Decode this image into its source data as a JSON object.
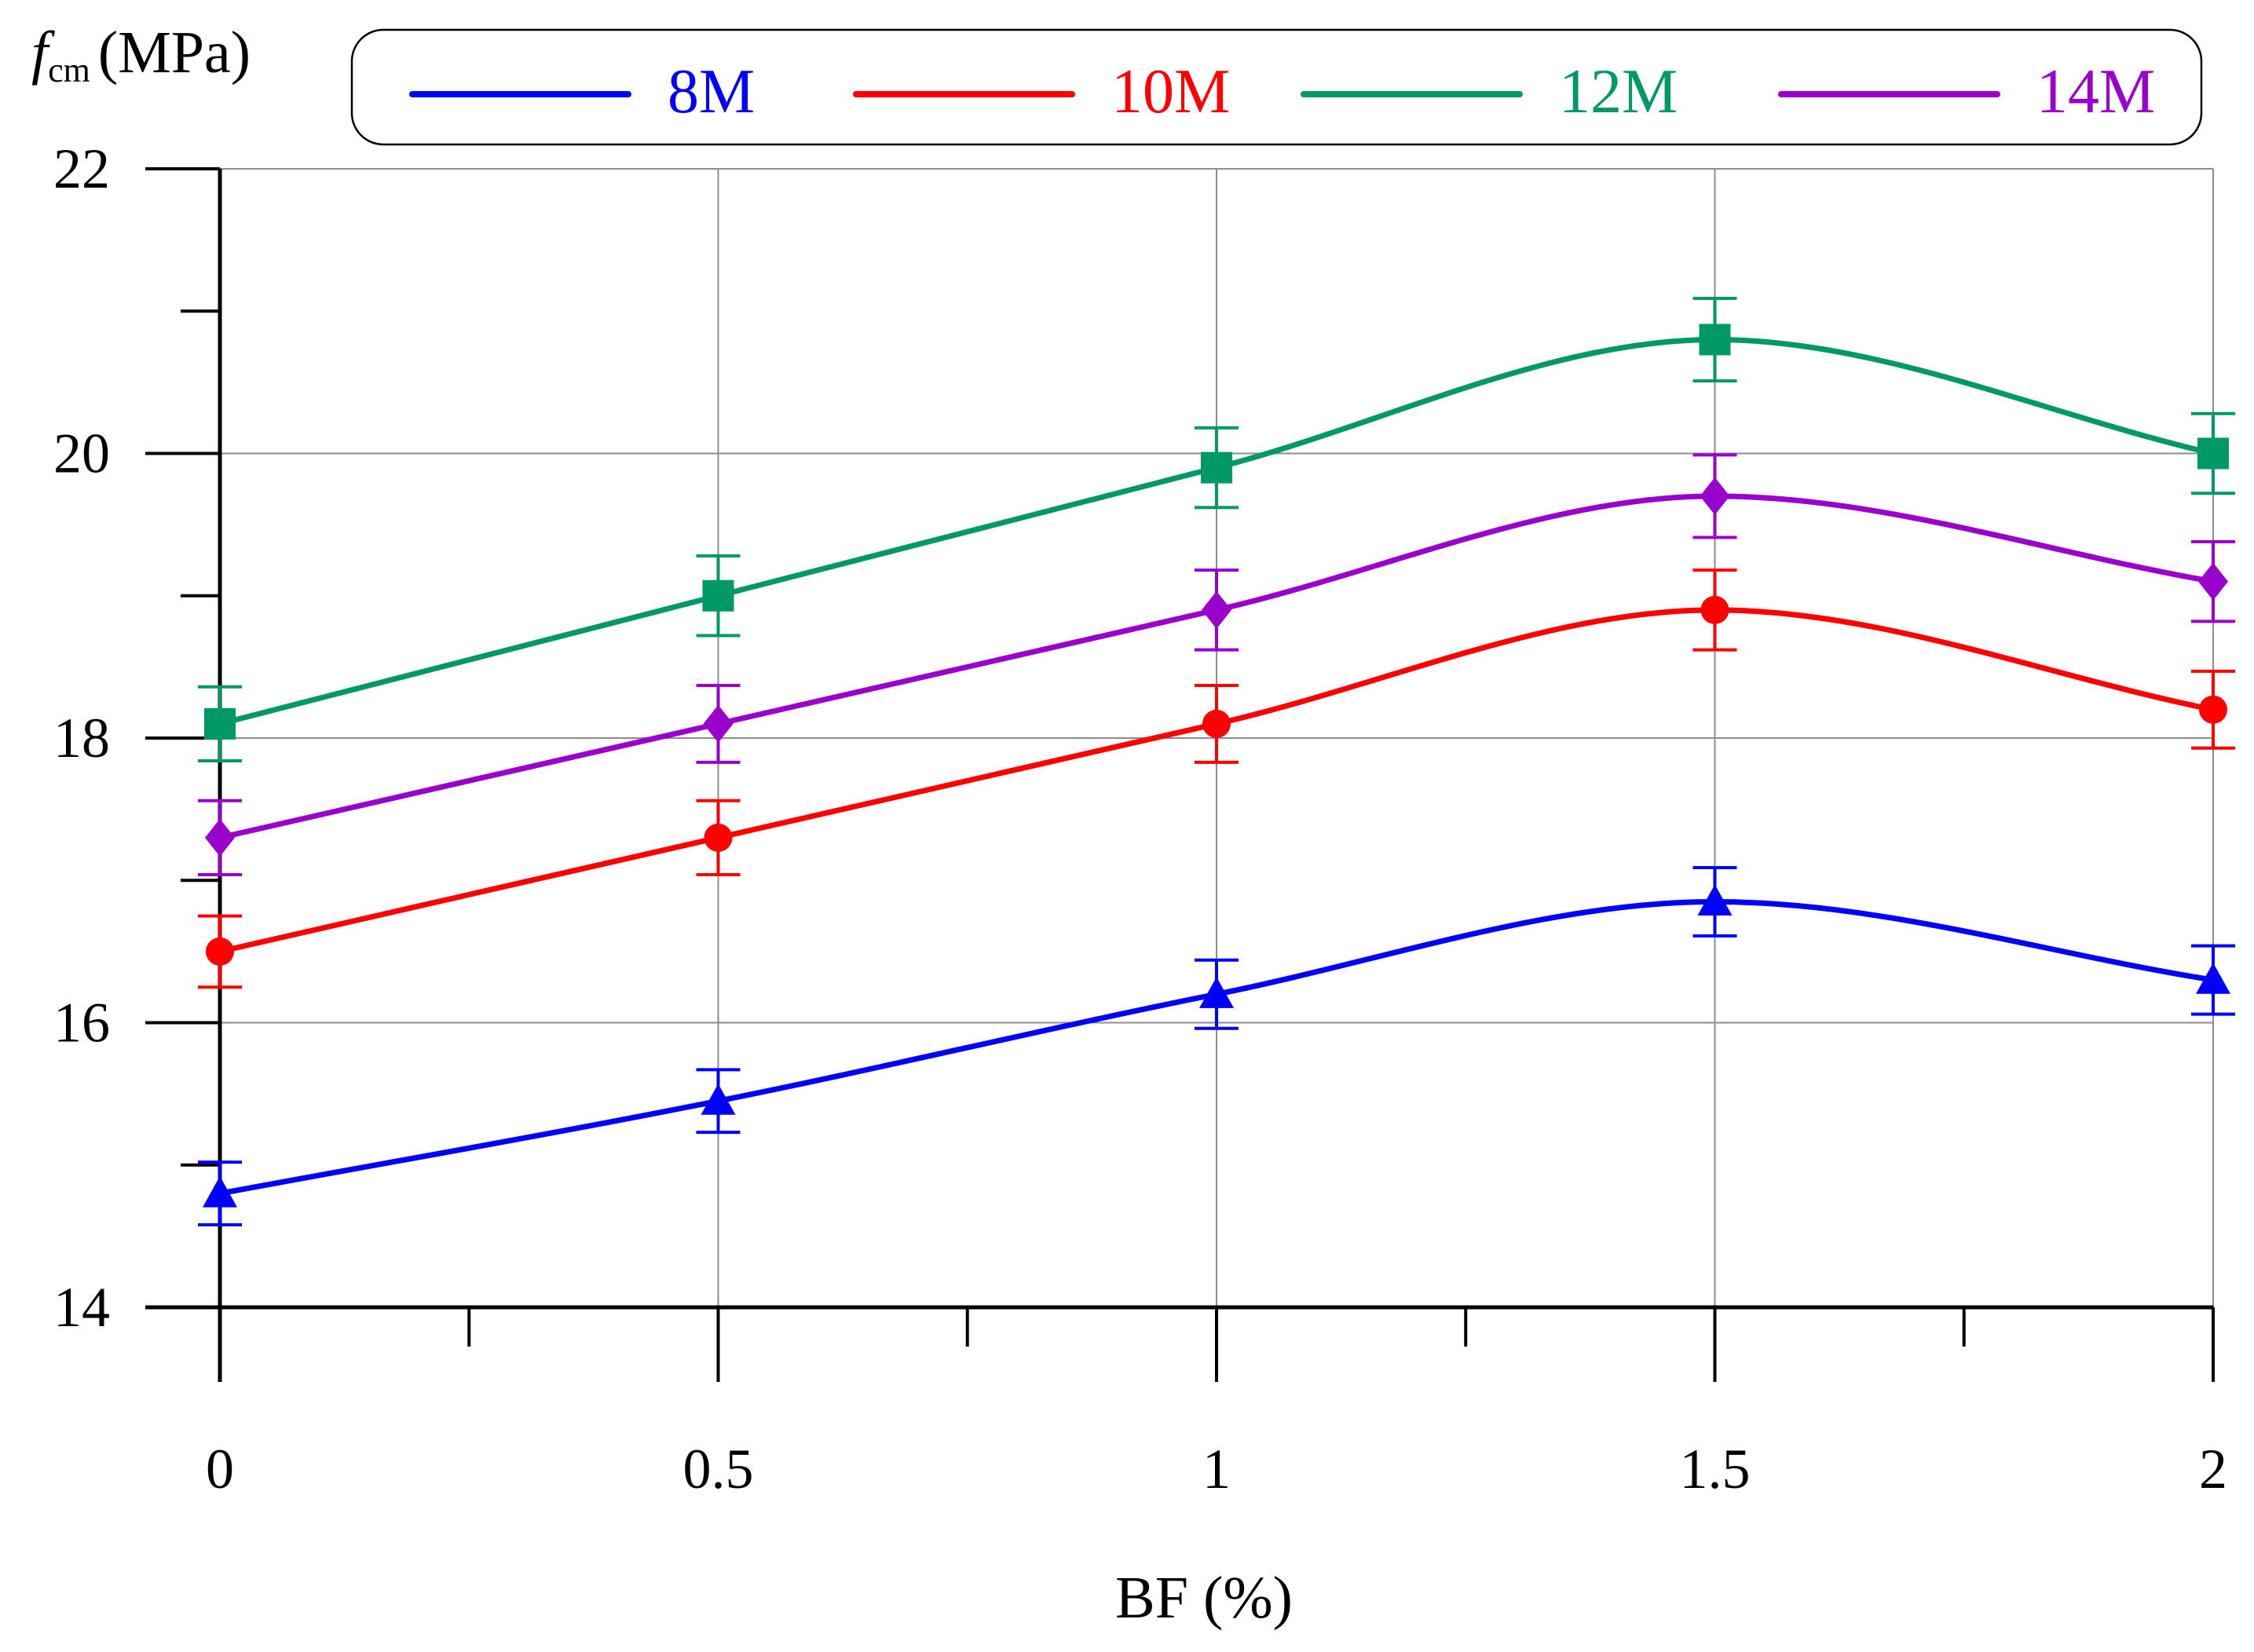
{
  "chart_data": {
    "type": "line",
    "title": "",
    "ylabel": "f",
    "ylabel_subscript": "cm",
    "ylabel_unit": "(MPa)",
    "xlabel": "BF (%)",
    "x": [
      0,
      0.5,
      1,
      1.5,
      2
    ],
    "x_tick_labels": [
      "0",
      "0.5",
      "1",
      "1.5",
      "2"
    ],
    "y_tick_labels": [
      "14",
      "16",
      "18",
      "20",
      "22"
    ],
    "xlim": [
      0,
      2
    ],
    "ylim": [
      14,
      22
    ],
    "grid": true,
    "legend_position": "top",
    "series": [
      {
        "name": "8M",
        "color": "#0000ff",
        "marker": "triangle",
        "values": [
          14.8,
          15.45,
          16.2,
          16.85,
          16.3
        ],
        "error": [
          0.22,
          0.22,
          0.24,
          0.24,
          0.24
        ]
      },
      {
        "name": "10M",
        "color": "#ff0000",
        "marker": "circle",
        "values": [
          16.5,
          17.3,
          18.1,
          18.9,
          18.2
        ],
        "error": [
          0.25,
          0.26,
          0.27,
          0.28,
          0.27
        ]
      },
      {
        "name": "12M",
        "color": "#009966",
        "marker": "square",
        "values": [
          18.1,
          19.0,
          19.9,
          20.8,
          20.0
        ],
        "error": [
          0.26,
          0.28,
          0.28,
          0.29,
          0.28
        ]
      },
      {
        "name": "14M",
        "color": "#9900cc",
        "marker": "diamond",
        "values": [
          17.3,
          18.1,
          18.9,
          19.7,
          19.1
        ],
        "error": [
          0.26,
          0.27,
          0.28,
          0.29,
          0.28
        ]
      }
    ]
  }
}
